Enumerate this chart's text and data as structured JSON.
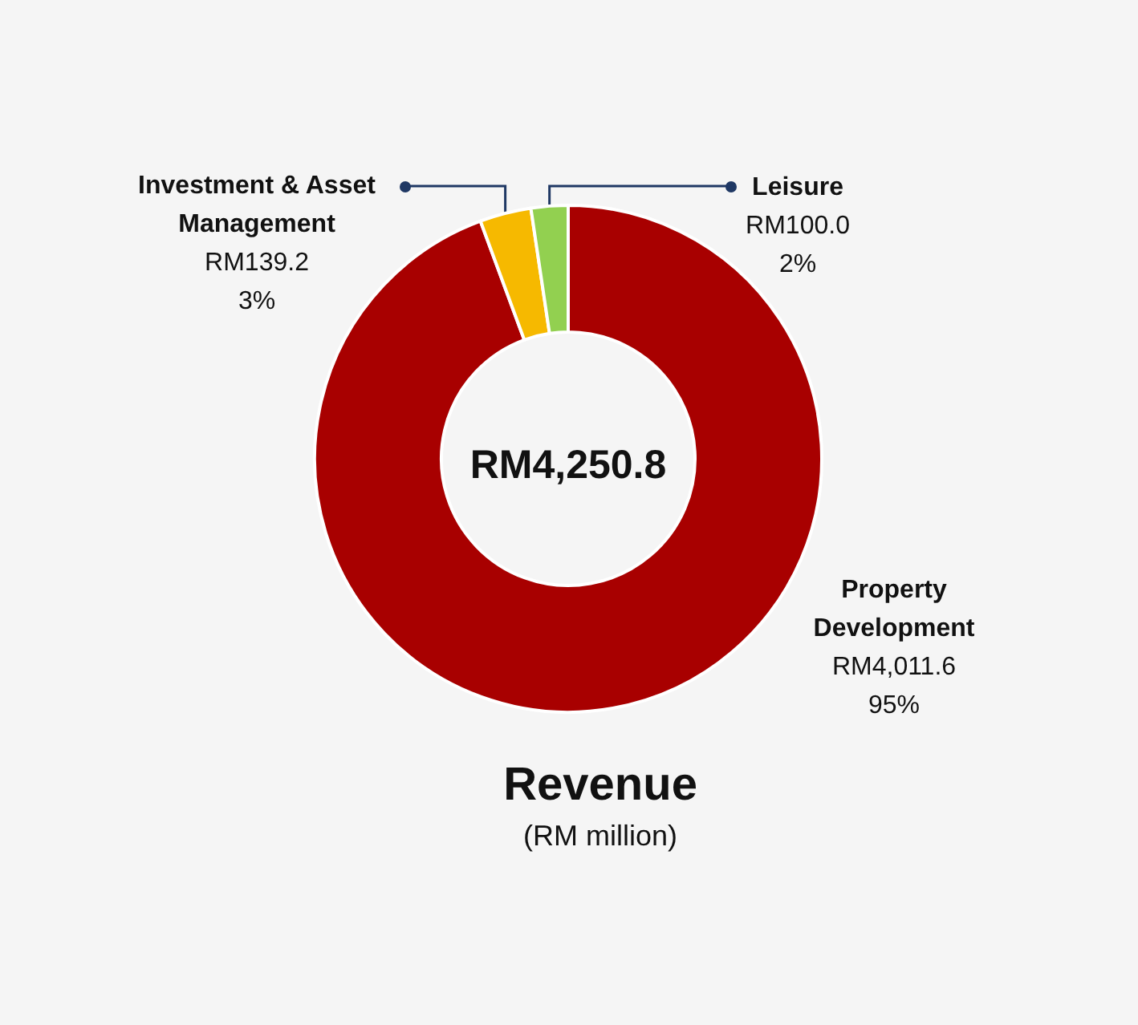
{
  "chart_data": {
    "type": "donut",
    "title": "Revenue",
    "subtitle": "(RM million)",
    "categories": [
      "Property Development",
      "Investment & Asset Management",
      "Leisure"
    ],
    "values": [
      4011.6,
      139.2,
      100.0
    ],
    "colors": [
      "#a80000",
      "#f6b900",
      "#92d050"
    ],
    "value_labels": [
      "RM4,011.6\n95%",
      "RM139.2\n3%",
      "RM100.0\n2%"
    ],
    "annotations": [
      "RM4,250.8"
    ]
  }
}
